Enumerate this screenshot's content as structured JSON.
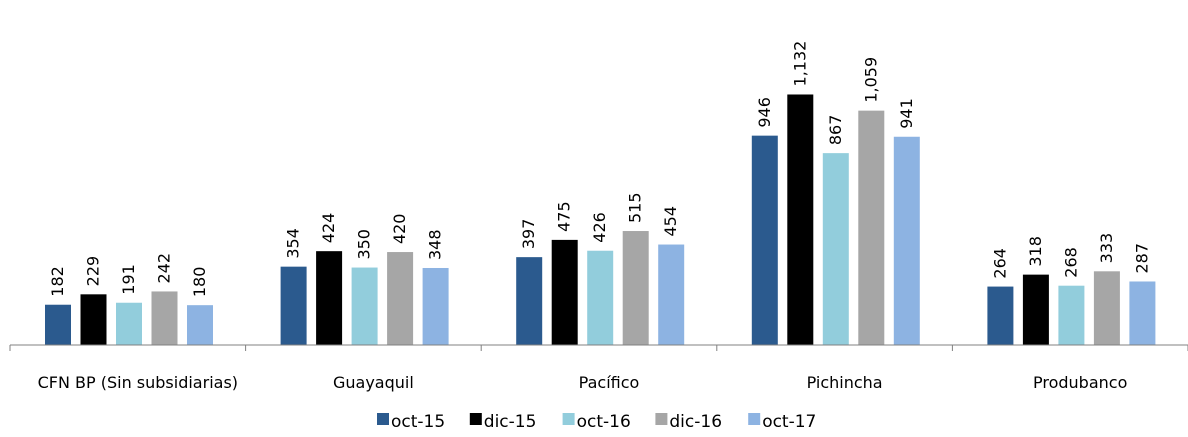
{
  "chart_data": {
    "type": "bar",
    "title": "",
    "xlabel": "",
    "ylabel": "",
    "ylim": [
      0,
      1200
    ],
    "grid": false,
    "legend": "bottom",
    "categories": [
      "CFN BP (Sin subsidiarias)",
      "Guayaquil",
      "Pacífico",
      "Pichincha",
      "Produbanco"
    ],
    "series": [
      {
        "name": "oct-15",
        "color": "#2b5a8e",
        "values": [
          182,
          354,
          397,
          946,
          264
        ],
        "labels": [
          "182",
          "354",
          "397",
          "946",
          "264"
        ]
      },
      {
        "name": "dic-15",
        "color": "#000000",
        "values": [
          229,
          424,
          475,
          1132,
          318
        ],
        "labels": [
          "229",
          "424",
          "475",
          "1,132",
          "318"
        ]
      },
      {
        "name": "oct-16",
        "color": "#92cddc",
        "values": [
          191,
          350,
          426,
          867,
          268
        ],
        "labels": [
          "191",
          "350",
          "426",
          "867",
          "268"
        ]
      },
      {
        "name": "dic-16",
        "color": "#a6a6a6",
        "values": [
          242,
          420,
          515,
          1059,
          333
        ],
        "labels": [
          "242",
          "420",
          "515",
          "1,059",
          "333"
        ]
      },
      {
        "name": "oct-17",
        "color": "#8db3e2",
        "values": [
          180,
          348,
          454,
          941,
          287
        ],
        "labels": [
          "180",
          "348",
          "454",
          "941",
          "287"
        ]
      }
    ]
  }
}
